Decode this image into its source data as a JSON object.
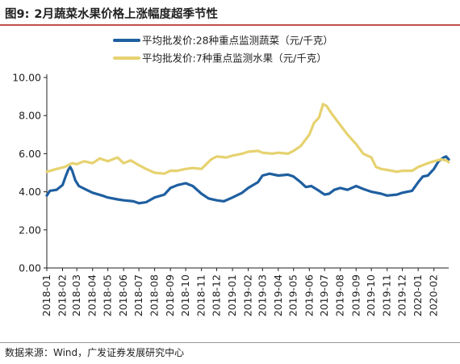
{
  "header": {
    "figure_number": "图9:",
    "title": "2月蔬菜水果价格上涨幅度超季节性"
  },
  "footer": {
    "source": "数据来源：Wind，广发证券发展研究中心"
  },
  "colors": {
    "accent_rule": "#c0504d",
    "vegetable": "#1f5fa0",
    "fruit": "#e6d270"
  },
  "chart_data": {
    "type": "line",
    "title": "2月蔬菜水果价格上涨幅度超季节性",
    "xlabel": "",
    "ylabel": "",
    "ylim": [
      0,
      10
    ],
    "yticks": [
      "0.00",
      "2.00",
      "4.00",
      "6.00",
      "8.00",
      "10.00"
    ],
    "xticks": [
      "2018-01",
      "2018-02",
      "2018-03",
      "2018-04",
      "2018-05",
      "2018-06",
      "2018-07",
      "2018-08",
      "2018-09",
      "2018-10",
      "2018-11",
      "2018-12",
      "2019-01",
      "2019-02",
      "2019-03",
      "2019-04",
      "2019-05",
      "2019-06",
      "2019-07",
      "2019-08",
      "2019-09",
      "2019-10",
      "2019-11",
      "2019-12",
      "2020-01",
      "2020-02"
    ],
    "xrange": [
      "2018-01",
      "2020-03"
    ],
    "grid": false,
    "legend_position": "top",
    "series": [
      {
        "name": "平均批发价:28种重点监测蔬菜（元/千克）",
        "color": "#1f5fa0",
        "points": [
          [
            "2018-01-01",
            3.8
          ],
          [
            "2018-01-07",
            4.05
          ],
          [
            "2018-01-20",
            4.1
          ],
          [
            "2018-02-01",
            4.35
          ],
          [
            "2018-02-07",
            4.8
          ],
          [
            "2018-02-12",
            5.15
          ],
          [
            "2018-02-16",
            5.3
          ],
          [
            "2018-02-20",
            5.1
          ],
          [
            "2018-02-26",
            4.6
          ],
          [
            "2018-03-05",
            4.3
          ],
          [
            "2018-03-20",
            4.1
          ],
          [
            "2018-04-01",
            3.95
          ],
          [
            "2018-04-20",
            3.8
          ],
          [
            "2018-05-01",
            3.7
          ],
          [
            "2018-05-20",
            3.6
          ],
          [
            "2018-06-01",
            3.55
          ],
          [
            "2018-06-20",
            3.5
          ],
          [
            "2018-07-01",
            3.4
          ],
          [
            "2018-07-15",
            3.45
          ],
          [
            "2018-08-01",
            3.7
          ],
          [
            "2018-08-20",
            3.85
          ],
          [
            "2018-09-01",
            4.2
          ],
          [
            "2018-09-15",
            4.35
          ],
          [
            "2018-10-01",
            4.45
          ],
          [
            "2018-10-15",
            4.3
          ],
          [
            "2018-11-01",
            3.9
          ],
          [
            "2018-11-15",
            3.65
          ],
          [
            "2018-12-01",
            3.55
          ],
          [
            "2018-12-15",
            3.5
          ],
          [
            "2019-01-01",
            3.7
          ],
          [
            "2019-01-20",
            3.95
          ],
          [
            "2019-02-01",
            4.2
          ],
          [
            "2019-02-20",
            4.5
          ],
          [
            "2019-03-01",
            4.85
          ],
          [
            "2019-03-15",
            4.95
          ],
          [
            "2019-04-01",
            4.85
          ],
          [
            "2019-04-20",
            4.9
          ],
          [
            "2019-05-01",
            4.8
          ],
          [
            "2019-05-15",
            4.5
          ],
          [
            "2019-05-25",
            4.25
          ],
          [
            "2019-06-05",
            4.3
          ],
          [
            "2019-06-20",
            4.05
          ],
          [
            "2019-07-01",
            3.85
          ],
          [
            "2019-07-10",
            3.9
          ],
          [
            "2019-07-20",
            4.1
          ],
          [
            "2019-08-01",
            4.2
          ],
          [
            "2019-08-15",
            4.1
          ],
          [
            "2019-09-01",
            4.3
          ],
          [
            "2019-09-15",
            4.15
          ],
          [
            "2019-10-01",
            4.0
          ],
          [
            "2019-10-20",
            3.9
          ],
          [
            "2019-11-01",
            3.8
          ],
          [
            "2019-11-20",
            3.85
          ],
          [
            "2019-12-01",
            3.95
          ],
          [
            "2019-12-20",
            4.05
          ],
          [
            "2020-01-01",
            4.5
          ],
          [
            "2020-01-10",
            4.8
          ],
          [
            "2020-01-20",
            4.85
          ],
          [
            "2020-02-01",
            5.2
          ],
          [
            "2020-02-10",
            5.6
          ],
          [
            "2020-02-20",
            5.8
          ],
          [
            "2020-02-25",
            5.85
          ],
          [
            "2020-03-01",
            5.7
          ]
        ]
      },
      {
        "name": "平均批发价:7种重点监测水果（元/千克）",
        "color": "#e6d270",
        "points": [
          [
            "2018-01-01",
            5.05
          ],
          [
            "2018-01-20",
            5.2
          ],
          [
            "2018-02-05",
            5.3
          ],
          [
            "2018-02-20",
            5.5
          ],
          [
            "2018-03-01",
            5.45
          ],
          [
            "2018-03-15",
            5.6
          ],
          [
            "2018-04-01",
            5.5
          ],
          [
            "2018-04-15",
            5.75
          ],
          [
            "2018-05-01",
            5.6
          ],
          [
            "2018-05-20",
            5.8
          ],
          [
            "2018-06-01",
            5.5
          ],
          [
            "2018-06-15",
            5.65
          ],
          [
            "2018-07-01",
            5.4
          ],
          [
            "2018-07-15",
            5.2
          ],
          [
            "2018-08-01",
            5.0
          ],
          [
            "2018-08-20",
            4.95
          ],
          [
            "2018-09-01",
            5.1
          ],
          [
            "2018-09-15",
            5.1
          ],
          [
            "2018-10-01",
            5.2
          ],
          [
            "2018-10-15",
            5.25
          ],
          [
            "2018-11-01",
            5.2
          ],
          [
            "2018-11-20",
            5.7
          ],
          [
            "2018-12-01",
            5.85
          ],
          [
            "2018-12-20",
            5.8
          ],
          [
            "2019-01-01",
            5.9
          ],
          [
            "2019-01-20",
            6.0
          ],
          [
            "2019-02-01",
            6.1
          ],
          [
            "2019-02-20",
            6.15
          ],
          [
            "2019-03-01",
            6.05
          ],
          [
            "2019-03-20",
            6.0
          ],
          [
            "2019-04-01",
            6.05
          ],
          [
            "2019-04-20",
            6.0
          ],
          [
            "2019-05-01",
            6.15
          ],
          [
            "2019-05-15",
            6.4
          ],
          [
            "2019-06-01",
            7.0
          ],
          [
            "2019-06-10",
            7.6
          ],
          [
            "2019-06-20",
            7.9
          ],
          [
            "2019-06-28",
            8.6
          ],
          [
            "2019-07-05",
            8.5
          ],
          [
            "2019-07-15",
            8.1
          ],
          [
            "2019-08-01",
            7.5
          ],
          [
            "2019-08-15",
            7.0
          ],
          [
            "2019-09-01",
            6.5
          ],
          [
            "2019-09-15",
            6.0
          ],
          [
            "2019-10-01",
            5.8
          ],
          [
            "2019-10-10",
            5.3
          ],
          [
            "2019-10-20",
            5.2
          ],
          [
            "2019-11-01",
            5.15
          ],
          [
            "2019-11-20",
            5.05
          ],
          [
            "2019-12-01",
            5.1
          ],
          [
            "2019-12-20",
            5.1
          ],
          [
            "2020-01-01",
            5.3
          ],
          [
            "2020-01-20",
            5.5
          ],
          [
            "2020-02-01",
            5.6
          ],
          [
            "2020-02-15",
            5.7
          ],
          [
            "2020-02-25",
            5.65
          ],
          [
            "2020-03-01",
            5.55
          ]
        ]
      }
    ]
  }
}
